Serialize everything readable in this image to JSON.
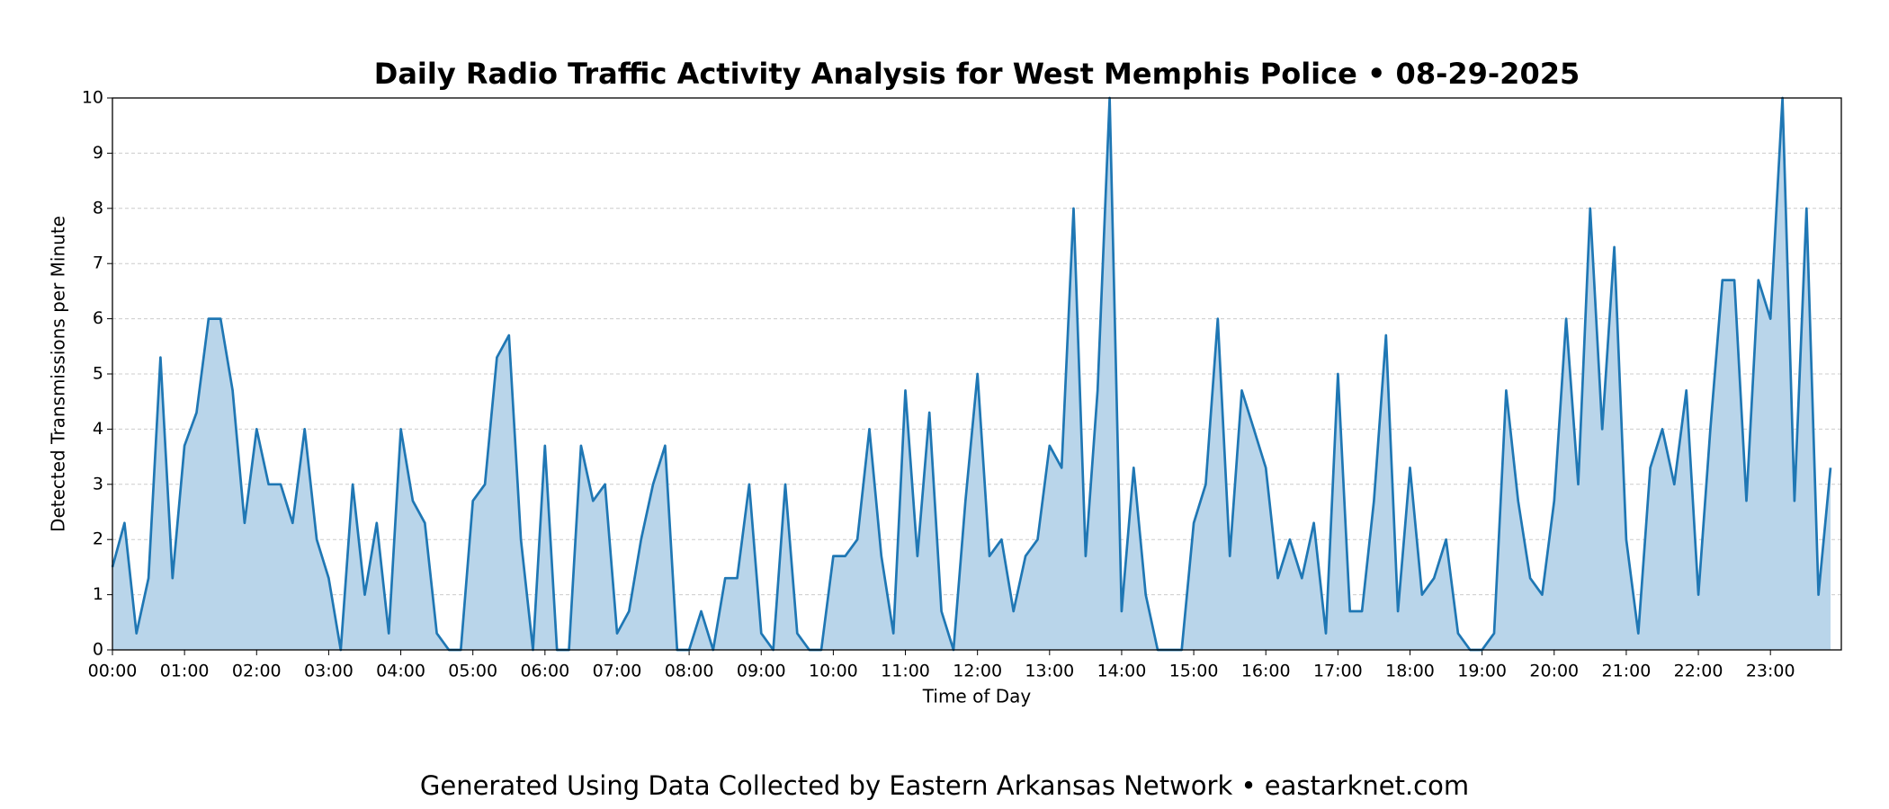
{
  "chart_data": {
    "type": "line",
    "title": "Daily Radio Traffic Activity Analysis for West Memphis Police • 08-29-2025",
    "xlabel": "Time of Day",
    "ylabel": "Detected Transmissions per Minute",
    "footer": "Generated Using Data Collected by Eastern Arkansas Network • eastarknet.com",
    "color": "#1f77b4",
    "fill_color": "#b9d5ea",
    "grid": true,
    "xlim": [
      0,
      1439
    ],
    "ylim": [
      0,
      10
    ],
    "yticks": [
      0,
      1,
      2,
      3,
      4,
      5,
      6,
      7,
      8,
      9,
      10
    ],
    "xticks": [
      {
        "value": 0,
        "label": "00:00"
      },
      {
        "value": 60,
        "label": "01:00"
      },
      {
        "value": 120,
        "label": "02:00"
      },
      {
        "value": 180,
        "label": "03:00"
      },
      {
        "value": 240,
        "label": "04:00"
      },
      {
        "value": 300,
        "label": "05:00"
      },
      {
        "value": 360,
        "label": "06:00"
      },
      {
        "value": 420,
        "label": "07:00"
      },
      {
        "value": 480,
        "label": "08:00"
      },
      {
        "value": 540,
        "label": "09:00"
      },
      {
        "value": 600,
        "label": "10:00"
      },
      {
        "value": 660,
        "label": "11:00"
      },
      {
        "value": 720,
        "label": "12:00"
      },
      {
        "value": 780,
        "label": "13:00"
      },
      {
        "value": 840,
        "label": "14:00"
      },
      {
        "value": 900,
        "label": "15:00"
      },
      {
        "value": 960,
        "label": "16:00"
      },
      {
        "value": 1020,
        "label": "17:00"
      },
      {
        "value": 1080,
        "label": "18:00"
      },
      {
        "value": 1140,
        "label": "19:00"
      },
      {
        "value": 1200,
        "label": "20:00"
      },
      {
        "value": 1260,
        "label": "21:00"
      },
      {
        "value": 1320,
        "label": "22:00"
      },
      {
        "value": 1380,
        "label": "23:00"
      }
    ],
    "x": [
      0,
      10,
      20,
      30,
      40,
      50,
      60,
      70,
      80,
      90,
      100,
      110,
      120,
      130,
      140,
      150,
      160,
      170,
      180,
      190,
      200,
      210,
      220,
      230,
      240,
      250,
      260,
      270,
      280,
      290,
      300,
      310,
      320,
      330,
      340,
      350,
      360,
      370,
      380,
      390,
      400,
      410,
      420,
      430,
      440,
      450,
      460,
      470,
      480,
      490,
      500,
      510,
      520,
      530,
      540,
      550,
      560,
      570,
      580,
      590,
      600,
      610,
      620,
      630,
      640,
      650,
      660,
      670,
      680,
      690,
      700,
      710,
      720,
      730,
      740,
      750,
      760,
      770,
      780,
      790,
      800,
      810,
      820,
      830,
      840,
      850,
      860,
      870,
      880,
      890,
      900,
      910,
      920,
      930,
      940,
      950,
      960,
      970,
      980,
      990,
      1000,
      1010,
      1020,
      1030,
      1040,
      1050,
      1060,
      1070,
      1080,
      1090,
      1100,
      1110,
      1120,
      1130,
      1140,
      1150,
      1160,
      1170,
      1180,
      1190,
      1200,
      1210,
      1220,
      1230,
      1240,
      1250,
      1260,
      1270,
      1280,
      1290,
      1300,
      1310,
      1320,
      1330,
      1340,
      1350,
      1360,
      1370,
      1380,
      1390,
      1400,
      1410,
      1420,
      1430
    ],
    "values": [
      1.5,
      2.3,
      0.3,
      1.3,
      5.3,
      1.3,
      3.7,
      4.3,
      6,
      6,
      4.7,
      2.3,
      4,
      3,
      3,
      2.3,
      4,
      2,
      1.3,
      0,
      3,
      1,
      2.3,
      0.3,
      4,
      2.7,
      2.3,
      0.3,
      0,
      0,
      2.7,
      3,
      5.3,
      5.7,
      2,
      0,
      3.7,
      0,
      0,
      3.7,
      2.7,
      3,
      0.3,
      0.7,
      2,
      3,
      3.7,
      0,
      0,
      0.7,
      0,
      1.3,
      1.3,
      3,
      0.3,
      0,
      3,
      0.3,
      0,
      0,
      1.7,
      1.7,
      2,
      4,
      1.7,
      0.3,
      4.7,
      1.7,
      4.3,
      0.7,
      0,
      2.7,
      5,
      1.7,
      2,
      0.7,
      1.7,
      2,
      3.7,
      3.3,
      8,
      1.7,
      4.7,
      10,
      0.7,
      3.3,
      1,
      0,
      0,
      0,
      2.3,
      3,
      6,
      1.7,
      4.7,
      4,
      3.3,
      1.3,
      2,
      1.3,
      2.3,
      0.3,
      5,
      0.7,
      0.7,
      2.7,
      5.7,
      0.7,
      3.3,
      1,
      1.3,
      2,
      0.3,
      0,
      0,
      0.3,
      4.7,
      2.7,
      1.3,
      1,
      2.7,
      6,
      3,
      8,
      4,
      7.3,
      2,
      0.3,
      3.3,
      4,
      3,
      4.7,
      1,
      4,
      6.7,
      6.7,
      2.7,
      6.7,
      6,
      10,
      2.7,
      8,
      1,
      3.3
    ]
  }
}
